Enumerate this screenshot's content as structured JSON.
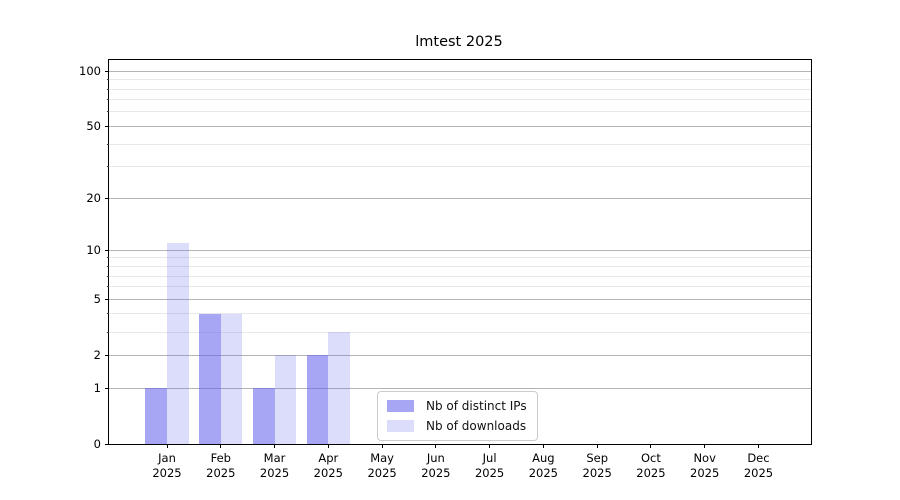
{
  "figure": {
    "title": "lmtest 2025"
  },
  "chart_data": {
    "type": "bar",
    "title": "lmtest 2025",
    "categories": [
      "Jan",
      "Feb",
      "Mar",
      "Apr",
      "May",
      "Jun",
      "Jul",
      "Aug",
      "Sep",
      "Oct",
      "Nov",
      "Dec"
    ],
    "category_year": "2025",
    "series": [
      {
        "name": "Nb of distinct IPs",
        "color": "rgba(102,102,238,0.58)",
        "values": [
          1,
          4,
          1,
          2,
          0,
          0,
          0,
          0,
          0,
          0,
          0,
          0
        ]
      },
      {
        "name": "Nb of downloads",
        "color": "rgba(102,102,238,0.23)",
        "values": [
          11,
          4,
          2,
          3,
          0,
          0,
          0,
          0,
          0,
          0,
          0,
          0
        ]
      }
    ],
    "bar_base_color": "#6666ee",
    "yscale": "log(1+x)",
    "ylim": [
      0,
      115
    ],
    "yticks": [
      0,
      1,
      2,
      5,
      10,
      20,
      50,
      100
    ],
    "yticks_minor": [
      3,
      4,
      6,
      7,
      8,
      9,
      30,
      40,
      60,
      70,
      80,
      90
    ],
    "xlabel": "",
    "ylabel": "",
    "grid": "both",
    "grid_major_color": "#b4b4b4",
    "grid_minor_color": "#e8e8e8",
    "legend_position": "inside-bottom-center"
  }
}
